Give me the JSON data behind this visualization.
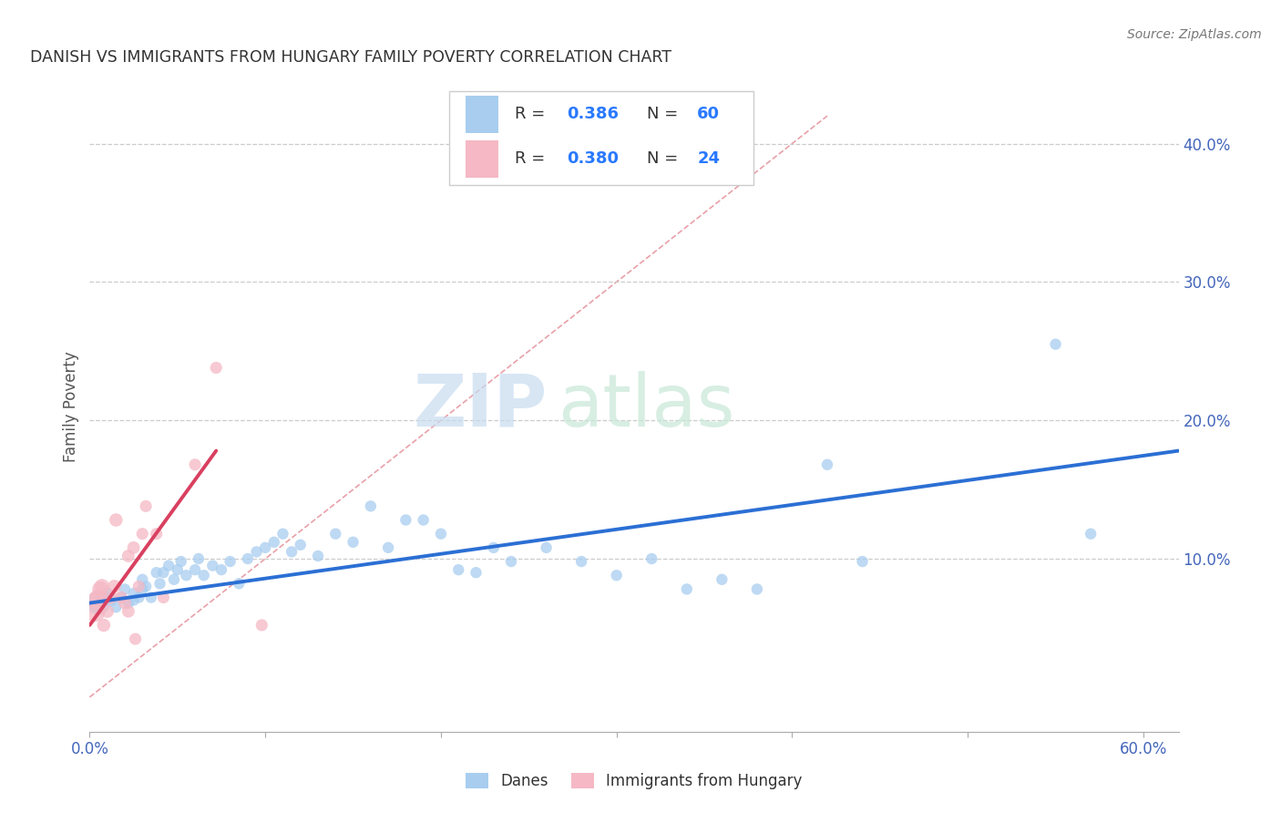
{
  "title": "DANISH VS IMMIGRANTS FROM HUNGARY FAMILY POVERTY CORRELATION CHART",
  "source": "Source: ZipAtlas.com",
  "ylabel": "Family Poverty",
  "xlim": [
    0.0,
    0.62
  ],
  "ylim": [
    -0.025,
    0.445
  ],
  "xticks": [
    0.0,
    0.1,
    0.2,
    0.3,
    0.4,
    0.5,
    0.6
  ],
  "xticklabels": [
    "0.0%",
    "",
    "",
    "",
    "",
    "",
    "60.0%"
  ],
  "yticks_right": [
    0.1,
    0.2,
    0.3,
    0.4
  ],
  "ytick_right_labels": [
    "10.0%",
    "20.0%",
    "30.0%",
    "40.0%"
  ],
  "blue_color": "#A8CDEF",
  "pink_color": "#F5B8C4",
  "line_blue": "#2B6FD4",
  "line_pink": "#D94060",
  "diag_color": "#E8A0A8",
  "grid_color": "#CCCCCC",
  "danes_scatter_x": [
    0.005,
    0.008,
    0.01,
    0.012,
    0.015,
    0.018,
    0.02,
    0.022,
    0.025,
    0.025,
    0.028,
    0.03,
    0.03,
    0.032,
    0.035,
    0.038,
    0.04,
    0.042,
    0.045,
    0.048,
    0.05,
    0.052,
    0.055,
    0.06,
    0.062,
    0.065,
    0.07,
    0.075,
    0.08,
    0.085,
    0.09,
    0.095,
    0.1,
    0.105,
    0.11,
    0.115,
    0.12,
    0.13,
    0.14,
    0.15,
    0.16,
    0.17,
    0.18,
    0.19,
    0.2,
    0.21,
    0.22,
    0.23,
    0.24,
    0.26,
    0.28,
    0.3,
    0.32,
    0.34,
    0.36,
    0.38,
    0.42,
    0.44,
    0.55,
    0.57
  ],
  "danes_scatter_y": [
    0.068,
    0.072,
    0.075,
    0.07,
    0.065,
    0.072,
    0.078,
    0.068,
    0.07,
    0.075,
    0.072,
    0.085,
    0.078,
    0.08,
    0.072,
    0.09,
    0.082,
    0.09,
    0.095,
    0.085,
    0.092,
    0.098,
    0.088,
    0.092,
    0.1,
    0.088,
    0.095,
    0.092,
    0.098,
    0.082,
    0.1,
    0.105,
    0.108,
    0.112,
    0.118,
    0.105,
    0.11,
    0.102,
    0.118,
    0.112,
    0.138,
    0.108,
    0.128,
    0.128,
    0.118,
    0.092,
    0.09,
    0.108,
    0.098,
    0.108,
    0.098,
    0.088,
    0.1,
    0.078,
    0.085,
    0.078,
    0.168,
    0.098,
    0.255,
    0.118
  ],
  "danes_scatter_sizes": [
    350,
    120,
    90,
    90,
    80,
    80,
    80,
    80,
    80,
    80,
    80,
    80,
    80,
    80,
    80,
    80,
    80,
    80,
    80,
    80,
    80,
    80,
    80,
    80,
    80,
    80,
    80,
    80,
    80,
    80,
    80,
    80,
    80,
    80,
    80,
    80,
    80,
    80,
    80,
    80,
    80,
    80,
    80,
    80,
    80,
    80,
    80,
    80,
    80,
    80,
    80,
    80,
    80,
    80,
    80,
    80,
    80,
    80,
    80,
    80
  ],
  "hungary_scatter_x": [
    0.003,
    0.004,
    0.005,
    0.006,
    0.007,
    0.008,
    0.01,
    0.012,
    0.014,
    0.015,
    0.018,
    0.02,
    0.022,
    0.022,
    0.025,
    0.026,
    0.028,
    0.03,
    0.032,
    0.038,
    0.042,
    0.06,
    0.072,
    0.098
  ],
  "hungary_scatter_y": [
    0.062,
    0.07,
    0.072,
    0.078,
    0.08,
    0.052,
    0.062,
    0.072,
    0.08,
    0.128,
    0.072,
    0.068,
    0.062,
    0.102,
    0.108,
    0.042,
    0.08,
    0.118,
    0.138,
    0.118,
    0.072,
    0.168,
    0.238,
    0.052
  ],
  "hungary_scatter_sizes": [
    280,
    220,
    180,
    160,
    140,
    110,
    110,
    110,
    110,
    110,
    100,
    100,
    100,
    100,
    100,
    90,
    90,
    90,
    90,
    90,
    90,
    90,
    90,
    90
  ],
  "blue_line_x": [
    0.0,
    0.62
  ],
  "blue_line_y": [
    0.068,
    0.178
  ],
  "pink_line_x": [
    0.0,
    0.072
  ],
  "pink_line_y": [
    0.052,
    0.178
  ],
  "diag_line_x": [
    0.0,
    0.42
  ],
  "diag_line_y": [
    0.0,
    0.42
  ],
  "background_color": "#FFFFFF"
}
